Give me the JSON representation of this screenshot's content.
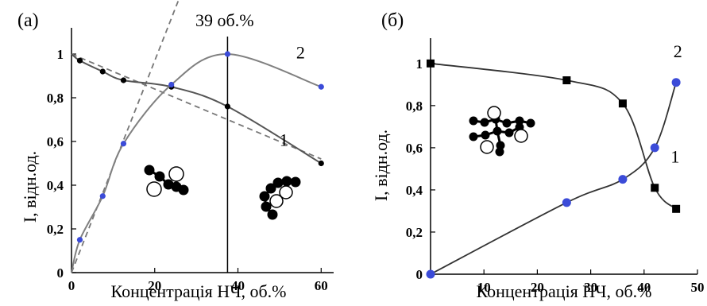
{
  "chart_data": [
    {
      "type": "line",
      "panel_label": "(а)",
      "xlabel": "Концентрація НЧ, об.%",
      "ylabel": "I, відн.од.",
      "xlim": [
        0,
        63
      ],
      "ylim": [
        0,
        1.12
      ],
      "x_ticks": [
        "0",
        "20",
        "40",
        "60"
      ],
      "x_tick_values": [
        0,
        20,
        40,
        60
      ],
      "y_ticks": [
        "0",
        "0,2",
        "0,4",
        "0,6",
        "0,8",
        "1"
      ],
      "y_tick_values": [
        0,
        0.2,
        0.4,
        0.6,
        0.8,
        1.0
      ],
      "annotation": "39 об.%",
      "annotation_x": 37.5,
      "series": [
        {
          "name": "1",
          "color": "#000000",
          "line_color": "#555555",
          "x": [
            2,
            7.5,
            12.5,
            24,
            37.5,
            60
          ],
          "y": [
            0.97,
            0.92,
            0.88,
            0.85,
            0.76,
            0.5
          ]
        },
        {
          "name": "2",
          "color": "#3b4bd8",
          "line_color": "#808080",
          "x": [
            2,
            7.5,
            12.5,
            24,
            37.5,
            60
          ],
          "y": [
            0.15,
            0.35,
            0.59,
            0.86,
            1.0,
            0.85
          ]
        }
      ],
      "dashed_fits": [
        {
          "x": [
            0,
            60
          ],
          "y": [
            1.0,
            0.52
          ]
        },
        {
          "x": [
            0,
            26
          ],
          "y": [
            0.0,
            1.26
          ]
        }
      ],
      "legend_position": "inline labels"
    },
    {
      "type": "line",
      "panel_label": "(б)",
      "xlabel": "Концентрація НЧ, об.%",
      "ylabel": "I, відн.од.",
      "xlim": [
        0,
        50
      ],
      "ylim": [
        0,
        1.12
      ],
      "x_ticks": [
        "10",
        "20",
        "30",
        "40",
        "50"
      ],
      "x_tick_values": [
        10,
        20,
        30,
        40,
        50
      ],
      "y_ticks": [
        "0",
        "0,2",
        "0,4",
        "0,6",
        "0,8",
        "1"
      ],
      "y_tick_values": [
        0,
        0.2,
        0.4,
        0.6,
        0.8,
        1.0
      ],
      "series": [
        {
          "name": "1",
          "color": "#000000",
          "marker": "square",
          "x": [
            0,
            25.5,
            36,
            42,
            46
          ],
          "y": [
            1.0,
            0.92,
            0.81,
            0.41,
            0.31
          ]
        },
        {
          "name": "2",
          "color": "#3b4bd8",
          "marker": "circle",
          "x": [
            0,
            25.5,
            36,
            42,
            46
          ],
          "y": [
            0.0,
            0.34,
            0.45,
            0.6,
            0.91
          ]
        }
      ],
      "legend_position": "inline labels"
    }
  ]
}
